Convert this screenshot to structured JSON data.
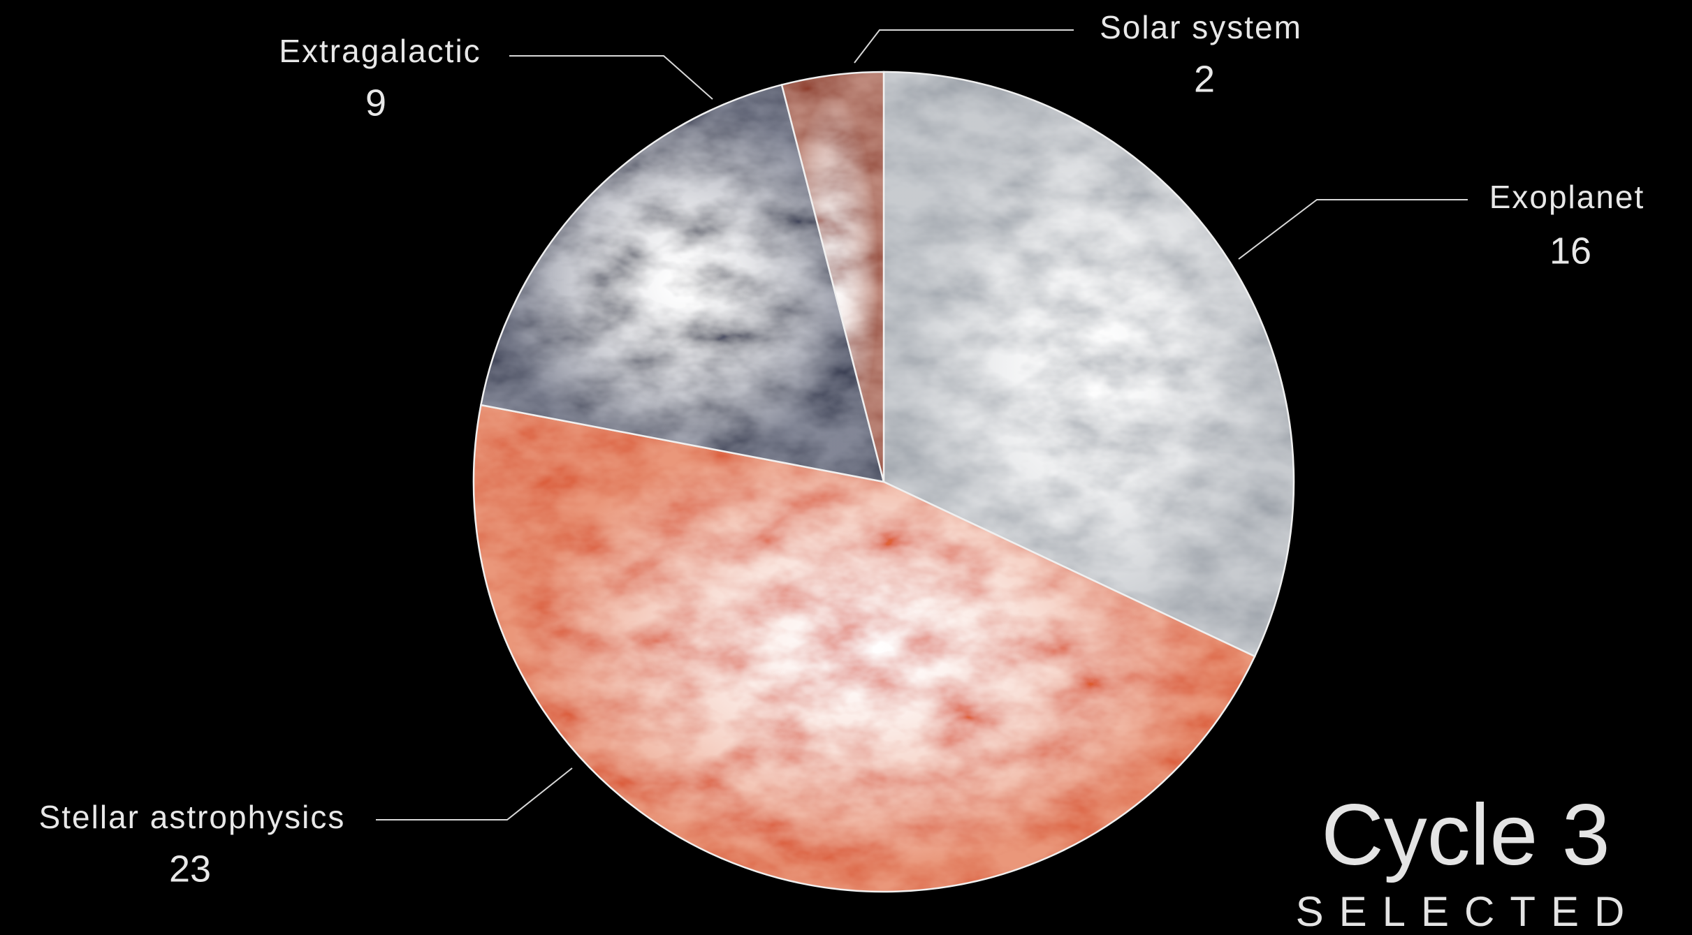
{
  "chart_data": {
    "type": "pie",
    "title": "Cycle 3",
    "subtitle": "SELECTED",
    "categories": [
      "Exoplanet",
      "Stellar astrophysics",
      "Extragalactic",
      "Solar system"
    ],
    "values": [
      16,
      23,
      9,
      2
    ],
    "colors": [
      "#9aa0a8",
      "#d8420e",
      "#1d2440",
      "#8a2a12"
    ]
  }
}
